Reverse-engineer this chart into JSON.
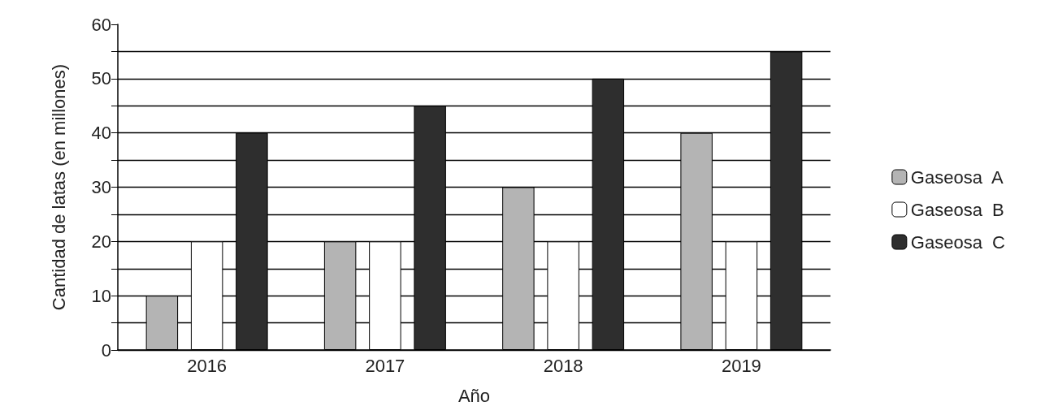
{
  "chart_data": {
    "type": "bar",
    "xlabel": "Año",
    "ylabel": "Cantidad de latas (en millones)",
    "categories": [
      "2016",
      "2017",
      "2018",
      "2019"
    ],
    "series": [
      {
        "name": "Gaseosa  A",
        "color": "#b4b4b4",
        "values": [
          10,
          20,
          30,
          40
        ]
      },
      {
        "name": "Gaseosa  B",
        "color": "#ffffff",
        "values": [
          20,
          20,
          20,
          20
        ]
      },
      {
        "name": "Gaseosa  C",
        "color": "#2e2e2e",
        "values": [
          40,
          45,
          50,
          55
        ]
      }
    ],
    "ylim": [
      0,
      60
    ],
    "yticks": [
      0,
      {
        "value": 5,
        "label": null
      },
      10,
      {
        "value": 15,
        "label": null
      },
      20,
      {
        "value": 25,
        "label": null
      },
      30,
      {
        "value": 35,
        "label": null
      },
      40,
      {
        "value": 45,
        "label": null
      },
      50,
      {
        "value": 55,
        "label": null
      },
      60
    ],
    "grid": "y",
    "legend": "right"
  }
}
